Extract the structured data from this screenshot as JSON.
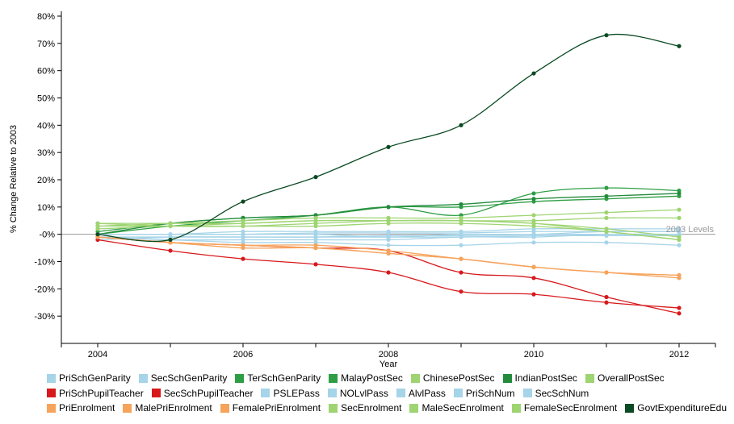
{
  "chart_data": {
    "type": "line",
    "xlabel": "Year",
    "ylabel": "% Change Relative to 2003",
    "reference_label": "2003 Levels",
    "x": [
      2004,
      2005,
      2006,
      2007,
      2008,
      2009,
      2010,
      2011,
      2012
    ],
    "xlim": [
      2003.5,
      2012.5
    ],
    "ylim": [
      -40,
      80
    ],
    "x_ticks": [
      2004,
      2006,
      2008,
      2010,
      2012
    ],
    "y_ticks": [
      -30,
      -20,
      -10,
      0,
      10,
      20,
      30,
      40,
      50,
      60,
      70,
      80
    ],
    "y_tick_labels": [
      "-30%",
      "-20%",
      "-10%",
      "-0%",
      "10%",
      "20%",
      "30%",
      "40%",
      "50%",
      "60%",
      "70%",
      "80%"
    ],
    "legend_position": "bottom",
    "series": [
      {
        "name": "PriSchGenParity",
        "color": "#a6d4e8",
        "values": [
          -2,
          -1,
          -1,
          -1,
          -0.5,
          -0.5,
          0,
          0,
          0
        ]
      },
      {
        "name": "SecSchGenParity",
        "color": "#a6d4e8",
        "values": [
          -1,
          -1,
          -1,
          -1,
          -1,
          -1,
          -0.5,
          -0.5,
          -0.5
        ]
      },
      {
        "name": "TerSchGenParity",
        "color": "#2e9e44",
        "values": [
          1,
          4,
          6,
          7,
          10,
          10,
          12,
          13,
          14
        ]
      },
      {
        "name": "MalayPostSec",
        "color": "#2e9e44",
        "values": [
          0,
          3,
          5,
          7,
          10,
          7,
          15,
          17,
          16
        ]
      },
      {
        "name": "ChinesePostSec",
        "color": "#9ed471",
        "values": [
          2,
          3,
          4,
          5,
          5,
          5,
          5,
          6,
          6
        ]
      },
      {
        "name": "IndianPostSec",
        "color": "#238b3c",
        "values": [
          0,
          4,
          6,
          7,
          10,
          11,
          13,
          14,
          15
        ]
      },
      {
        "name": "OverallPostSec",
        "color": "#9ed471",
        "values": [
          3,
          4,
          5,
          6,
          6,
          6,
          7,
          8,
          9
        ]
      },
      {
        "name": "PriSchPupilTeacher",
        "color": "#d7191c",
        "values": [
          -2,
          -6,
          -9,
          -11,
          -14,
          -21,
          -22,
          -25,
          -27
        ]
      },
      {
        "name": "SecSchPupilTeacher",
        "color": "#d7191c",
        "values": [
          -1,
          -3,
          -4,
          -5,
          -6,
          -14,
          -16,
          -23,
          -29
        ]
      },
      {
        "name": "PSLEPass",
        "color": "#a6d4e8",
        "values": [
          0,
          0,
          0,
          0.5,
          0.5,
          0.5,
          1,
          1,
          1
        ]
      },
      {
        "name": "NOLvlPass",
        "color": "#a6d4e8",
        "values": [
          -1,
          -2,
          -2,
          -2,
          -2,
          -1,
          -1,
          0,
          0
        ]
      },
      {
        "name": "AlvlPass",
        "color": "#a6d4e8",
        "values": [
          0,
          0,
          0,
          0,
          -1,
          0,
          0,
          1,
          1
        ]
      },
      {
        "name": "PriSchNum",
        "color": "#a6d4e8",
        "values": [
          -1,
          -2,
          -3,
          -3,
          -4,
          -4,
          -3,
          -3,
          -4
        ]
      },
      {
        "name": "SecSchNum",
        "color": "#a6d4e8",
        "values": [
          0,
          0,
          1,
          1,
          1,
          1,
          2,
          2,
          2
        ]
      },
      {
        "name": "PriEnrolment",
        "color": "#f6a35c",
        "values": [
          -1,
          -3,
          -5,
          -5,
          -7,
          -9,
          -12,
          -14,
          -16
        ]
      },
      {
        "name": "MalePriEnrolment",
        "color": "#f6a35c",
        "values": [
          -1,
          -3,
          -4,
          -4,
          -6,
          -9,
          -12,
          -14,
          -15
        ]
      },
      {
        "name": "FemalePriEnrolment",
        "color": "#f6a35c",
        "values": [
          -1,
          -3,
          -4,
          -5,
          -7,
          -9,
          -12,
          -14,
          -15
        ]
      },
      {
        "name": "SecEnrolment",
        "color": "#9ed471",
        "values": [
          4,
          3,
          3,
          4,
          5,
          5,
          4,
          1,
          -2
        ]
      },
      {
        "name": "MaleSecEnrolment",
        "color": "#9ed471",
        "values": [
          3,
          3,
          3,
          3,
          4,
          4,
          3,
          1,
          -2
        ]
      },
      {
        "name": "FemaleSecEnrolment",
        "color": "#9ed471",
        "values": [
          4,
          4,
          4,
          5,
          5,
          5,
          4,
          2,
          -1
        ]
      },
      {
        "name": "GovtExpenditureEdu",
        "color": "#0b4a22",
        "values": [
          0,
          -2,
          12,
          21,
          32,
          40,
          59,
          73,
          69
        ]
      }
    ]
  }
}
